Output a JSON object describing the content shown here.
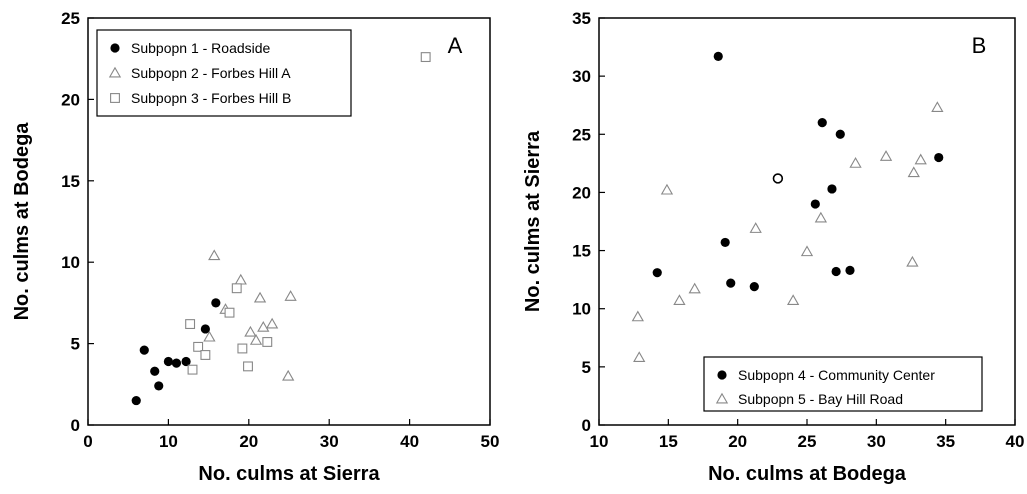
{
  "chart_data": [
    {
      "type": "scatter",
      "panel_label": "A",
      "xlabel": "No.  culms at Sierra",
      "ylabel": "No. culms at Bodega",
      "xlim": [
        0,
        50
      ],
      "ylim": [
        0,
        25
      ],
      "xticks": [
        0,
        10,
        20,
        30,
        40,
        50
      ],
      "yticks": [
        0,
        5,
        10,
        15,
        20,
        25
      ],
      "grid": false,
      "legend_position": "top-left",
      "series": [
        {
          "name": "Subpopn 1 - Roadside",
          "marker": "filled-circle",
          "points": [
            [
              6,
              1.5
            ],
            [
              7,
              4.6
            ],
            [
              8.3,
              3.3
            ],
            [
              8.8,
              2.4
            ],
            [
              10,
              3.9
            ],
            [
              11,
              3.8
            ],
            [
              12.2,
              3.9
            ],
            [
              14.6,
              5.9
            ],
            [
              15.9,
              7.5
            ]
          ]
        },
        {
          "name": "Subpopn 2 - Forbes Hill A",
          "marker": "open-triangle",
          "points": [
            [
              15.1,
              5.4
            ],
            [
              15.7,
              10.4
            ],
            [
              17.1,
              7.1
            ],
            [
              19,
              8.9
            ],
            [
              20.2,
              5.7
            ],
            [
              20.9,
              5.2
            ],
            [
              21.4,
              7.8
            ],
            [
              21.8,
              6.0
            ],
            [
              22.9,
              6.2
            ],
            [
              24.9,
              3.0
            ],
            [
              25.2,
              7.9
            ]
          ]
        },
        {
          "name": "Subpopn 3 - Forbes Hill B",
          "marker": "open-square",
          "points": [
            [
              12.7,
              6.2
            ],
            [
              13,
              3.4
            ],
            [
              13.7,
              4.8
            ],
            [
              14.6,
              4.3
            ],
            [
              17.6,
              6.9
            ],
            [
              18.5,
              8.4
            ],
            [
              19.2,
              4.7
            ],
            [
              19.9,
              3.6
            ],
            [
              22.3,
              5.1
            ],
            [
              42,
              22.6
            ]
          ]
        }
      ]
    },
    {
      "type": "scatter",
      "panel_label": "B",
      "xlabel": "No. culms at Bodega",
      "ylabel": "No. culms at Sierra",
      "xlim": [
        10,
        40
      ],
      "ylim": [
        0,
        35
      ],
      "xticks": [
        10,
        15,
        20,
        25,
        30,
        35,
        40
      ],
      "yticks": [
        0,
        5,
        10,
        15,
        20,
        25,
        30,
        35
      ],
      "grid": false,
      "legend_position": "bottom-right",
      "series": [
        {
          "name": "Subpopn  4 - Community Center",
          "marker": "filled-circle",
          "points": [
            [
              14.2,
              13.1
            ],
            [
              18.6,
              31.7
            ],
            [
              19.1,
              15.7
            ],
            [
              19.5,
              12.2
            ],
            [
              21.2,
              11.9
            ],
            [
              25.6,
              19
            ],
            [
              26.1,
              26
            ],
            [
              26.8,
              20.3
            ],
            [
              27.1,
              13.2
            ],
            [
              27.4,
              25
            ],
            [
              28.1,
              13.3
            ],
            [
              34.5,
              23
            ]
          ]
        },
        {
          "name": "Subpopn  5 - Bay Hill Road",
          "marker": "open-triangle",
          "points": [
            [
              12.8,
              9.3
            ],
            [
              12.9,
              5.8
            ],
            [
              14.9,
              20.2
            ],
            [
              15.8,
              10.7
            ],
            [
              16.9,
              11.7
            ],
            [
              21.3,
              16.9
            ],
            [
              24,
              10.7
            ],
            [
              25,
              14.9
            ],
            [
              26,
              17.8
            ],
            [
              28.5,
              22.5
            ],
            [
              30.7,
              23.1
            ],
            [
              32.6,
              14
            ],
            [
              32.7,
              21.7
            ],
            [
              33.2,
              22.8
            ],
            [
              34.4,
              27.3
            ]
          ]
        },
        {
          "name": "",
          "marker": "open-circle",
          "points": [
            [
              22.9,
              21.2
            ]
          ]
        }
      ]
    }
  ]
}
